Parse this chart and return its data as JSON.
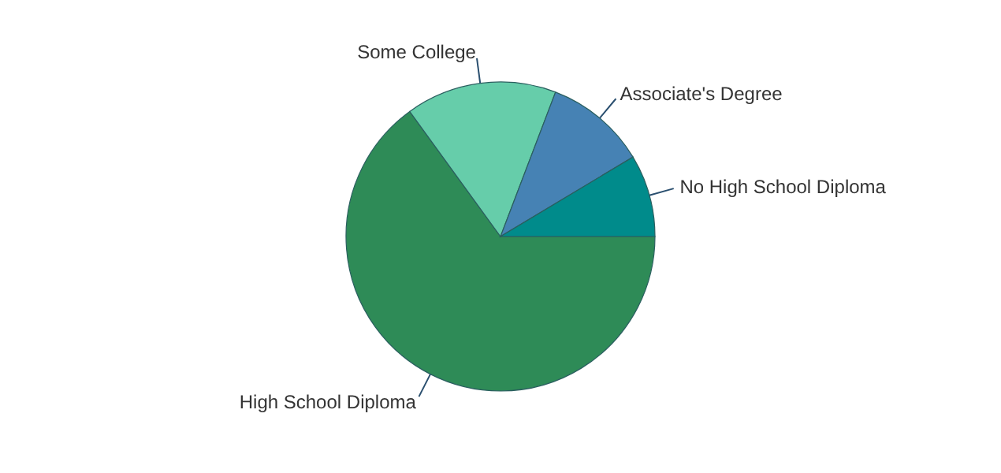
{
  "chart_data": {
    "type": "pie",
    "categories": [
      "High School Diploma",
      "Some College",
      "Associate's Degree",
      "No High School Diploma"
    ],
    "values": [
      65,
      15.8,
      10.6,
      8.6
    ],
    "colors": [
      "#2e8b57",
      "#66cdaa",
      "#4682b4",
      "#008b8b"
    ]
  }
}
